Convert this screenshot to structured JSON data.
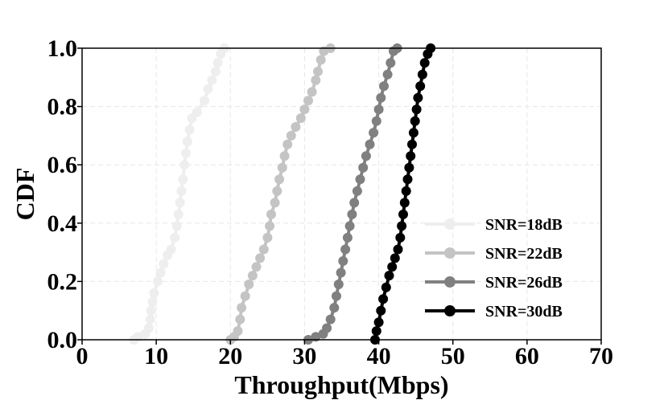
{
  "chart_data": {
    "type": "line",
    "xlabel": "Throughput(Mbps)",
    "ylabel": "CDF",
    "xlim": [
      0,
      70
    ],
    "ylim": [
      0,
      1.0
    ],
    "x_ticks": [
      0,
      10,
      20,
      30,
      40,
      50,
      60,
      70
    ],
    "y_ticks": [
      0.0,
      0.2,
      0.4,
      0.6,
      0.8,
      1.0
    ],
    "x_tick_labels": [
      "0",
      "10",
      "20",
      "30",
      "40",
      "50",
      "60",
      "70"
    ],
    "y_tick_labels": [
      "0.0",
      "0.2",
      "0.4",
      "0.6",
      "0.8",
      "1.0"
    ],
    "grid": true,
    "legend_position": "bottom-right",
    "series": [
      {
        "name": "SNR=18dB",
        "color": "#eeeeee",
        "points": [
          [
            7.0,
            0.0
          ],
          [
            7.5,
            0.01
          ],
          [
            8.5,
            0.02
          ],
          [
            9.0,
            0.04
          ],
          [
            9.2,
            0.07
          ],
          [
            9.3,
            0.1
          ],
          [
            9.5,
            0.13
          ],
          [
            9.7,
            0.16
          ],
          [
            10.2,
            0.2
          ],
          [
            10.6,
            0.23
          ],
          [
            11.0,
            0.26
          ],
          [
            11.5,
            0.29
          ],
          [
            12.0,
            0.31
          ],
          [
            12.5,
            0.35
          ],
          [
            12.8,
            0.39
          ],
          [
            13.0,
            0.43
          ],
          [
            13.2,
            0.47
          ],
          [
            13.4,
            0.51
          ],
          [
            13.6,
            0.55
          ],
          [
            13.8,
            0.6
          ],
          [
            14.0,
            0.64
          ],
          [
            14.2,
            0.68
          ],
          [
            14.5,
            0.72
          ],
          [
            14.8,
            0.76
          ],
          [
            15.5,
            0.78
          ],
          [
            16.5,
            0.82
          ],
          [
            17.0,
            0.86
          ],
          [
            17.5,
            0.89
          ],
          [
            18.0,
            0.92
          ],
          [
            18.3,
            0.95
          ],
          [
            18.7,
            0.98
          ],
          [
            19.2,
            1.0
          ]
        ]
      },
      {
        "name": "SNR=22dB",
        "color": "#c4c4c4",
        "points": [
          [
            20.0,
            0.0
          ],
          [
            20.5,
            0.01
          ],
          [
            21.0,
            0.03
          ],
          [
            21.3,
            0.07
          ],
          [
            21.5,
            0.11
          ],
          [
            22.0,
            0.15
          ],
          [
            22.5,
            0.19
          ],
          [
            23.0,
            0.22
          ],
          [
            23.5,
            0.25
          ],
          [
            24.0,
            0.28
          ],
          [
            24.5,
            0.31
          ],
          [
            25.0,
            0.35
          ],
          [
            25.3,
            0.39
          ],
          [
            25.5,
            0.43
          ],
          [
            26.0,
            0.47
          ],
          [
            26.3,
            0.51
          ],
          [
            26.6,
            0.55
          ],
          [
            27.0,
            0.59
          ],
          [
            27.3,
            0.63
          ],
          [
            27.7,
            0.67
          ],
          [
            28.2,
            0.7
          ],
          [
            28.8,
            0.73
          ],
          [
            29.5,
            0.76
          ],
          [
            30.0,
            0.79
          ],
          [
            30.5,
            0.82
          ],
          [
            31.0,
            0.85
          ],
          [
            31.5,
            0.89
          ],
          [
            31.8,
            0.92
          ],
          [
            32.2,
            0.96
          ],
          [
            32.6,
            0.99
          ],
          [
            33.5,
            1.0
          ]
        ]
      },
      {
        "name": "SNR=26dB",
        "color": "#808080",
        "points": [
          [
            30.5,
            0.0
          ],
          [
            31.5,
            0.01
          ],
          [
            32.5,
            0.02
          ],
          [
            33.0,
            0.04
          ],
          [
            33.5,
            0.07
          ],
          [
            34.0,
            0.11
          ],
          [
            34.3,
            0.15
          ],
          [
            34.6,
            0.19
          ],
          [
            34.9,
            0.23
          ],
          [
            35.2,
            0.27
          ],
          [
            35.5,
            0.31
          ],
          [
            35.8,
            0.35
          ],
          [
            36.1,
            0.39
          ],
          [
            36.4,
            0.43
          ],
          [
            36.7,
            0.47
          ],
          [
            37.1,
            0.51
          ],
          [
            37.5,
            0.55
          ],
          [
            37.9,
            0.59
          ],
          [
            38.3,
            0.63
          ],
          [
            38.8,
            0.67
          ],
          [
            39.3,
            0.71
          ],
          [
            39.7,
            0.75
          ],
          [
            40.0,
            0.79
          ],
          [
            40.3,
            0.83
          ],
          [
            40.7,
            0.87
          ],
          [
            41.2,
            0.91
          ],
          [
            41.6,
            0.95
          ],
          [
            42.0,
            0.99
          ],
          [
            42.5,
            1.0
          ]
        ]
      },
      {
        "name": "SNR=30dB",
        "color": "#000000",
        "points": [
          [
            39.5,
            0.0
          ],
          [
            39.7,
            0.03
          ],
          [
            40.0,
            0.06
          ],
          [
            40.3,
            0.1
          ],
          [
            40.6,
            0.14
          ],
          [
            41.0,
            0.18
          ],
          [
            41.4,
            0.22
          ],
          [
            41.8,
            0.25
          ],
          [
            42.2,
            0.28
          ],
          [
            42.6,
            0.31
          ],
          [
            42.9,
            0.35
          ],
          [
            43.1,
            0.39
          ],
          [
            43.3,
            0.43
          ],
          [
            43.5,
            0.47
          ],
          [
            43.7,
            0.51
          ],
          [
            43.9,
            0.55
          ],
          [
            44.1,
            0.59
          ],
          [
            44.3,
            0.63
          ],
          [
            44.5,
            0.67
          ],
          [
            44.7,
            0.71
          ],
          [
            44.9,
            0.75
          ],
          [
            45.1,
            0.79
          ],
          [
            45.3,
            0.83
          ],
          [
            45.6,
            0.87
          ],
          [
            45.9,
            0.91
          ],
          [
            46.2,
            0.95
          ],
          [
            46.6,
            0.98
          ],
          [
            47.0,
            1.0
          ]
        ]
      }
    ]
  }
}
